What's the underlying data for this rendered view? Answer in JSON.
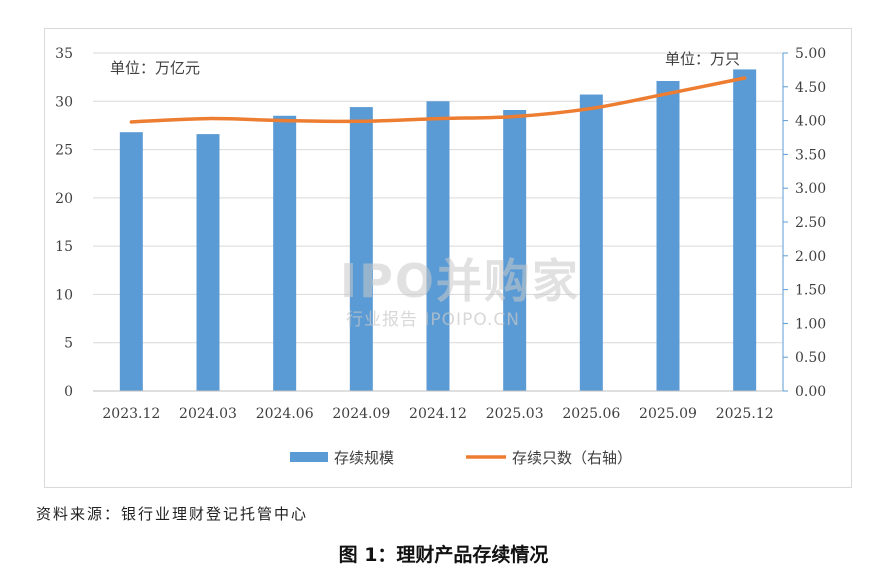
{
  "chart_data": {
    "type": "bar+line",
    "categories": [
      "2023.12",
      "2024.03",
      "2024.06",
      "2024.09",
      "2024.12",
      "2025.03",
      "2025.06",
      "2025.09",
      "2025.12"
    ],
    "series": [
      {
        "name": "存续规模",
        "type": "bar",
        "axis": "left",
        "color": "#5b9bd5",
        "values": [
          26.8,
          26.6,
          28.5,
          29.4,
          30.0,
          29.1,
          30.7,
          32.1,
          33.3
        ]
      },
      {
        "name": "存续只数（右轴）",
        "type": "line",
        "axis": "right",
        "color": "#ed7d31",
        "values": [
          3.98,
          4.03,
          4.0,
          3.99,
          4.03,
          4.06,
          4.18,
          4.4,
          4.63
        ]
      }
    ],
    "y_left": {
      "min": 0,
      "max": 35,
      "ticks": [
        "0",
        "5",
        "10",
        "15",
        "20",
        "25",
        "30",
        "35"
      ],
      "unit_label": "单位：万亿元"
    },
    "y_right": {
      "min": 0,
      "max": 5,
      "ticks": [
        "0.00",
        "0.50",
        "1.00",
        "1.50",
        "2.00",
        "2.50",
        "3.00",
        "3.50",
        "4.00",
        "4.50",
        "5.00"
      ],
      "unit_label": "单位：万只"
    },
    "grid": true,
    "legend_position": "bottom"
  },
  "watermark": {
    "main": "IPO并购家",
    "sub": "行业报告 IPOIPO.CN"
  },
  "source": "资料来源：银行业理财登记托管中心",
  "caption": "图 1：理财产品存续情况"
}
